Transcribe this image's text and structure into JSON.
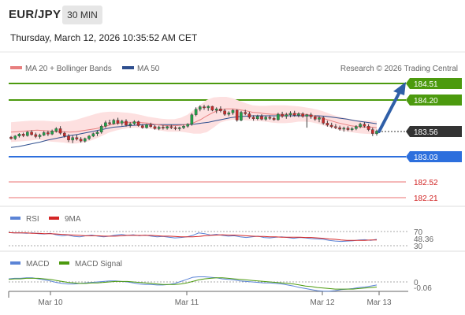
{
  "header": {
    "pair": "EUR/JPY",
    "timeframe": "30 MIN",
    "datetime": "Thursday, March 12, 2026 10:35:52 AM CET"
  },
  "legend": {
    "ma20": "MA 20 + Bollinger Bands",
    "ma50": "MA 50",
    "credit": "Research © 2026 Trading Central"
  },
  "rsi_legend": {
    "rsi": "RSI",
    "ma": "9MA"
  },
  "macd_legend": {
    "macd": "MACD",
    "signal": "MACD Signal"
  },
  "colors": {
    "up": "#22a14a",
    "down": "#c62a2a",
    "ma20": "#e87f7f",
    "ma50": "#2f4f8f",
    "band": "#fde0e0",
    "target": "#4c9a0e",
    "pivot": "#2d6fdd",
    "support": "#f2a0a0",
    "support_text": "#d02020",
    "current": "#333333",
    "arrow": "#2f5fa8",
    "rsi": "#5b84d6",
    "rsi_ma": "#d42626",
    "macd": "#5b84d6",
    "macd_signal": "#4c9a0e"
  },
  "chart_data": {
    "type": "candlestick",
    "price_axis_range": [
      181.94,
      184.72
    ],
    "x_ticks": [
      "Mar 10",
      "Mar 11",
      "Mar 12",
      "Mar 13"
    ],
    "current_price": 183.56,
    "levels": [
      {
        "value": 184.51,
        "label": "184.51",
        "kind": "target"
      },
      {
        "value": 184.2,
        "label": "184.20",
        "kind": "target"
      },
      {
        "value": 183.56,
        "label": "183.56",
        "kind": "current"
      },
      {
        "value": 183.03,
        "label": "183.03",
        "kind": "pivot"
      },
      {
        "value": 182.52,
        "label": "182.52",
        "kind": "support"
      },
      {
        "value": 182.21,
        "label": "182.21",
        "kind": "support"
      }
    ],
    "arrow": {
      "from": 183.53,
      "to": 184.51
    },
    "rsi": {
      "levels": [
        70,
        30
      ],
      "level_labels": [
        "70",
        "30"
      ],
      "value_label": "48.36",
      "value": 48.36,
      "values": [
        67,
        66,
        66,
        65,
        66,
        64,
        63,
        65,
        61,
        58,
        60,
        56,
        55,
        58,
        60,
        57,
        55,
        57,
        60,
        62,
        59,
        61,
        58,
        60,
        57,
        55,
        56,
        54,
        52,
        53,
        55,
        59,
        66,
        64,
        60,
        62,
        59,
        57,
        58,
        55,
        53,
        55,
        57,
        53,
        52,
        54,
        55,
        53,
        51,
        53,
        52,
        50,
        49,
        48,
        45,
        43,
        42,
        43,
        44,
        46,
        47,
        45,
        48
      ],
      "ma": [
        67,
        66,
        66,
        66,
        65,
        65,
        64,
        64,
        63,
        62,
        61,
        60,
        59,
        58,
        58,
        58,
        57,
        57,
        57,
        58,
        59,
        59,
        59,
        59,
        59,
        58,
        57,
        57,
        56,
        55,
        55,
        55,
        56,
        58,
        59,
        60,
        61,
        60,
        60,
        59,
        58,
        57,
        56,
        56,
        55,
        55,
        54,
        54,
        54,
        54,
        53,
        53,
        52,
        51,
        49,
        48,
        46,
        45,
        45,
        45,
        45,
        46,
        46
      ]
    },
    "macd": {
      "zero_label": "0",
      "value_label": "-0.06",
      "value": -0.06,
      "macd": [
        0.06,
        0.07,
        0.07,
        0.08,
        0.08,
        0.06,
        0.04,
        0.02,
        -0.01,
        -0.03,
        -0.04,
        -0.04,
        -0.03,
        -0.02,
        -0.01,
        0.0,
        0.01,
        0.02,
        0.02,
        0.01,
        0.0,
        -0.02,
        -0.04,
        -0.05,
        -0.05,
        -0.06,
        -0.06,
        -0.05,
        -0.03,
        0.01,
        0.05,
        0.09,
        0.1,
        0.1,
        0.09,
        0.08,
        0.06,
        0.05,
        0.04,
        0.02,
        0.01,
        0.0,
        -0.01,
        -0.02,
        -0.02,
        -0.03,
        -0.04,
        -0.06,
        -0.08,
        -0.11,
        -0.13,
        -0.15,
        -0.17,
        -0.18,
        -0.18,
        -0.17,
        -0.15,
        -0.14,
        -0.13,
        -0.11,
        -0.1,
        -0.08,
        -0.06
      ],
      "signal": [
        0.05,
        0.06,
        0.06,
        0.07,
        0.07,
        0.07,
        0.06,
        0.05,
        0.03,
        0.01,
        -0.01,
        -0.02,
        -0.03,
        -0.03,
        -0.02,
        -0.02,
        -0.01,
        0.0,
        0.01,
        0.01,
        0.01,
        0.0,
        -0.01,
        -0.02,
        -0.03,
        -0.04,
        -0.05,
        -0.05,
        -0.05,
        -0.04,
        -0.02,
        0.01,
        0.04,
        0.06,
        0.07,
        0.08,
        0.08,
        0.07,
        0.06,
        0.05,
        0.04,
        0.03,
        0.02,
        0.01,
        0.0,
        -0.01,
        -0.02,
        -0.03,
        -0.04,
        -0.06,
        -0.08,
        -0.09,
        -0.11,
        -0.12,
        -0.13,
        -0.14,
        -0.14,
        -0.14,
        -0.14,
        -0.13,
        -0.12,
        -0.11,
        -0.1
      ]
    },
    "ma20": [
      183.53,
      183.54,
      183.55,
      183.56,
      183.57,
      183.56,
      183.55,
      183.54,
      183.54,
      183.53,
      183.54,
      183.56,
      183.58,
      183.6,
      183.63,
      183.67,
      183.7,
      183.72,
      183.73,
      183.73,
      183.72,
      183.71,
      183.69,
      183.67,
      183.66,
      183.66,
      183.67,
      183.68,
      183.72,
      183.78,
      183.86,
      183.93,
      183.98,
      184.0,
      184.0,
      183.98,
      183.96,
      183.93,
      183.92,
      183.9,
      183.89,
      183.89,
      183.89,
      183.89,
      183.9,
      183.89,
      183.87,
      183.84,
      183.8,
      183.76,
      183.72,
      183.69,
      183.66,
      183.64,
      183.63,
      183.63,
      183.62
    ],
    "ma50": [
      183.22,
      183.24,
      183.27,
      183.3,
      183.33,
      183.37,
      183.4,
      183.43,
      183.46,
      183.48,
      183.51,
      183.54,
      183.57,
      183.6,
      183.63,
      183.64,
      183.66,
      183.67,
      183.68,
      183.68,
      183.68,
      183.68,
      183.68,
      183.68,
      183.68,
      183.69,
      183.71,
      183.73,
      183.76,
      183.79,
      183.82,
      183.84,
      183.85,
      183.86,
      183.86,
      183.86,
      183.86,
      183.86,
      183.86,
      183.86,
      183.86,
      183.86,
      183.86,
      183.85,
      183.83,
      183.81,
      183.79,
      183.76,
      183.74,
      183.72,
      183.7
    ],
    "band_upper": [
      183.73,
      183.74,
      183.75,
      183.76,
      183.76,
      183.76,
      183.75,
      183.74,
      183.74,
      183.75,
      183.78,
      183.82,
      183.86,
      183.9,
      183.93,
      183.94,
      183.94,
      183.93,
      183.92,
      183.9,
      183.87,
      183.84,
      183.82,
      183.8,
      183.79,
      183.79,
      183.82,
      183.88,
      183.98,
      184.08,
      184.18,
      184.23,
      184.24,
      184.24,
      184.21,
      184.16,
      184.11,
      184.07,
      184.06,
      184.06,
      184.07,
      184.07,
      184.07,
      184.06,
      184.05,
      184.03,
      184.01,
      183.98,
      183.94,
      183.89,
      183.85,
      183.82,
      183.79,
      183.77,
      183.76,
      183.76,
      183.75
    ],
    "band_lower": [
      183.33,
      183.34,
      183.35,
      183.36,
      183.38,
      183.36,
      183.34,
      183.33,
      183.32,
      183.3,
      183.3,
      183.32,
      183.35,
      183.4,
      183.46,
      183.52,
      183.56,
      183.59,
      183.61,
      183.62,
      183.61,
      183.6,
      183.58,
      183.56,
      183.54,
      183.54,
      183.54,
      183.52,
      183.5,
      183.5,
      183.53,
      183.62,
      183.72,
      183.76,
      183.78,
      183.78,
      183.77,
      183.76,
      183.75,
      183.74,
      183.72,
      183.71,
      183.71,
      183.72,
      183.74,
      183.74,
      183.73,
      183.7,
      183.66,
      183.62,
      183.58,
      183.55,
      183.53,
      183.51,
      183.5,
      183.49,
      183.48
    ],
    "candles": [
      [
        183.43,
        183.45,
        183.38,
        183.4
      ],
      [
        183.4,
        183.47,
        183.37,
        183.45
      ],
      [
        183.45,
        183.51,
        183.42,
        183.49
      ],
      [
        183.49,
        183.52,
        183.43,
        183.46
      ],
      [
        183.46,
        183.55,
        183.44,
        183.53
      ],
      [
        183.53,
        183.57,
        183.46,
        183.48
      ],
      [
        183.48,
        183.52,
        183.41,
        183.44
      ],
      [
        183.44,
        183.5,
        183.4,
        183.47
      ],
      [
        183.47,
        183.55,
        183.45,
        183.52
      ],
      [
        183.52,
        183.56,
        183.45,
        183.49
      ],
      [
        183.49,
        183.58,
        183.47,
        183.55
      ],
      [
        183.55,
        183.63,
        183.52,
        183.6
      ],
      [
        183.6,
        183.65,
        183.48,
        183.51
      ],
      [
        183.51,
        183.54,
        183.42,
        183.45
      ],
      [
        183.45,
        183.49,
        183.33,
        183.37
      ],
      [
        183.37,
        183.46,
        183.31,
        183.42
      ],
      [
        183.42,
        183.48,
        183.36,
        183.39
      ],
      [
        183.39,
        183.43,
        183.32,
        183.35
      ],
      [
        183.35,
        183.42,
        183.32,
        183.4
      ],
      [
        183.4,
        183.47,
        183.37,
        183.45
      ],
      [
        183.45,
        183.52,
        183.43,
        183.5
      ],
      [
        183.5,
        183.56,
        183.45,
        183.53
      ],
      [
        183.53,
        183.68,
        183.5,
        183.65
      ],
      [
        183.65,
        183.76,
        183.62,
        183.72
      ],
      [
        183.72,
        183.78,
        183.67,
        183.7
      ],
      [
        183.7,
        183.8,
        183.68,
        183.77
      ],
      [
        183.77,
        183.82,
        183.68,
        183.71
      ],
      [
        183.71,
        183.78,
        183.66,
        183.75
      ],
      [
        183.75,
        183.79,
        183.64,
        183.67
      ],
      [
        183.67,
        183.73,
        183.62,
        183.7
      ],
      [
        183.7,
        183.77,
        183.67,
        183.74
      ],
      [
        183.74,
        183.76,
        183.64,
        183.66
      ],
      [
        183.66,
        183.69,
        183.6,
        183.62
      ],
      [
        183.62,
        183.7,
        183.6,
        183.68
      ],
      [
        183.68,
        183.72,
        183.62,
        183.64
      ],
      [
        183.64,
        183.67,
        183.58,
        183.6
      ],
      [
        183.6,
        183.66,
        183.57,
        183.63
      ],
      [
        183.63,
        183.67,
        183.58,
        183.61
      ],
      [
        183.61,
        183.66,
        183.58,
        183.64
      ],
      [
        183.64,
        183.68,
        183.59,
        183.62
      ],
      [
        183.62,
        183.65,
        183.57,
        183.6
      ],
      [
        183.6,
        183.64,
        183.56,
        183.62
      ],
      [
        183.62,
        183.68,
        183.59,
        183.65
      ],
      [
        183.65,
        183.71,
        183.62,
        183.69
      ],
      [
        183.69,
        183.91,
        183.66,
        183.88
      ],
      [
        183.88,
        184.03,
        183.85,
        183.99
      ],
      [
        183.99,
        184.07,
        183.95,
        184.04
      ],
      [
        184.04,
        184.08,
        183.98,
        184.02
      ],
      [
        184.02,
        184.07,
        183.96,
        184.05
      ],
      [
        184.05,
        184.06,
        183.95,
        183.97
      ],
      [
        183.97,
        184.03,
        183.91,
        184.0
      ],
      [
        184.0,
        184.05,
        183.93,
        183.96
      ],
      [
        183.96,
        184.0,
        183.86,
        183.89
      ],
      [
        183.89,
        183.95,
        183.85,
        183.92
      ],
      [
        183.92,
        183.99,
        183.88,
        183.97
      ],
      [
        183.97,
        183.99,
        183.74,
        183.77
      ],
      [
        183.77,
        183.96,
        183.75,
        183.93
      ],
      [
        183.93,
        183.98,
        183.87,
        183.9
      ],
      [
        183.9,
        183.94,
        183.8,
        183.83
      ],
      [
        183.83,
        183.87,
        183.76,
        183.8
      ],
      [
        183.8,
        183.88,
        183.77,
        183.85
      ],
      [
        183.85,
        183.89,
        183.77,
        183.79
      ],
      [
        183.79,
        183.86,
        183.76,
        183.83
      ],
      [
        183.83,
        183.87,
        183.78,
        183.81
      ],
      [
        183.81,
        183.84,
        183.76,
        183.78
      ],
      [
        183.78,
        183.92,
        183.76,
        183.89
      ],
      [
        183.89,
        183.94,
        183.82,
        183.85
      ],
      [
        183.85,
        183.92,
        183.8,
        183.88
      ],
      [
        183.88,
        183.95,
        183.83,
        183.91
      ],
      [
        183.91,
        183.96,
        183.84,
        183.87
      ],
      [
        183.87,
        183.93,
        183.83,
        183.9
      ],
      [
        183.9,
        183.93,
        183.82,
        183.85
      ],
      [
        183.85,
        183.9,
        183.62,
        183.88
      ],
      [
        183.88,
        183.92,
        183.8,
        183.84
      ],
      [
        183.84,
        183.87,
        183.76,
        183.79
      ],
      [
        183.79,
        183.85,
        183.73,
        183.82
      ],
      [
        183.82,
        183.85,
        183.68,
        183.71
      ],
      [
        183.71,
        183.76,
        183.64,
        183.67
      ],
      [
        183.67,
        183.72,
        183.61,
        183.64
      ],
      [
        183.64,
        183.69,
        183.59,
        183.62
      ],
      [
        183.62,
        183.66,
        183.56,
        183.59
      ],
      [
        183.59,
        183.64,
        183.54,
        183.61
      ],
      [
        183.61,
        183.65,
        183.55,
        183.58
      ],
      [
        183.58,
        183.63,
        183.55,
        183.6
      ],
      [
        183.6,
        183.67,
        183.57,
        183.64
      ],
      [
        183.64,
        183.72,
        183.61,
        183.69
      ],
      [
        183.69,
        183.73,
        183.62,
        183.65
      ],
      [
        183.65,
        183.69,
        183.55,
        183.58
      ],
      [
        183.58,
        183.62,
        183.45,
        183.5
      ],
      [
        183.5,
        183.58,
        183.46,
        183.55
      ]
    ]
  }
}
